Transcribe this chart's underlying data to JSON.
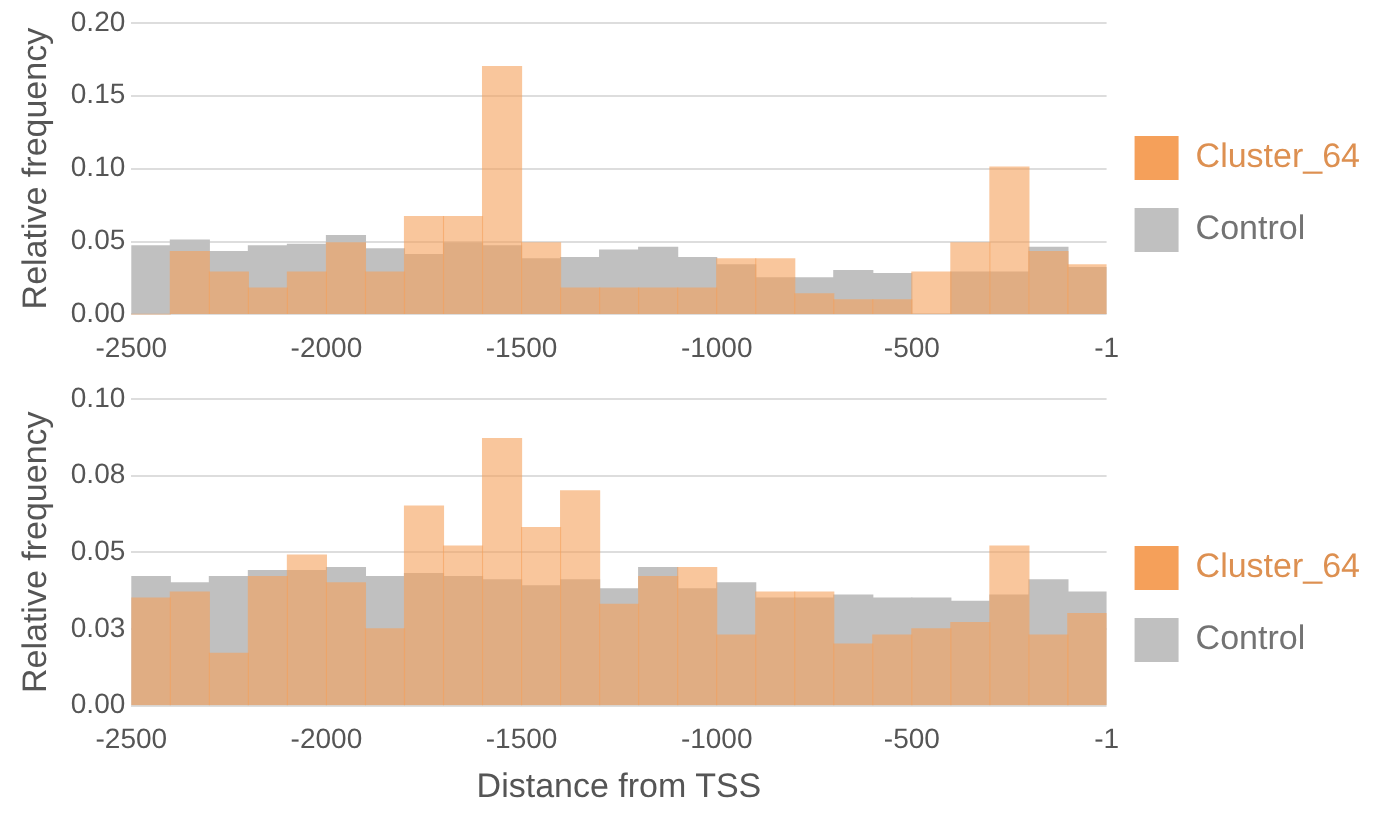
{
  "chart_data": [
    {
      "type": "histogram",
      "ylabel": "Relative frequency",
      "bins": [
        -2500,
        -2400,
        -2300,
        -2200,
        -2100,
        -2000,
        -1900,
        -1800,
        -1700,
        -1600,
        -1500,
        -1400,
        -1300,
        -1200,
        -1100,
        -1000,
        -900,
        -800,
        -700,
        -600,
        -500,
        -400,
        -300,
        -200,
        -100,
        -1
      ],
      "series": [
        {
          "name": "Cluster_64",
          "color": "#f5a05a",
          "values": [
            0,
            0.043,
            0.029,
            0.018,
            0.029,
            0.049,
            0.029,
            0.067,
            0.067,
            0.17,
            0.049,
            0.018,
            0.018,
            0.018,
            0.018,
            0.038,
            0.038,
            0.014,
            0.01,
            0.01,
            0.029,
            0.049,
            0.101,
            0.043,
            0.034
          ]
        },
        {
          "name": "Control",
          "color": "#c0c0c0",
          "values": [
            0.047,
            0.051,
            0.043,
            0.047,
            0.048,
            0.054,
            0.045,
            0.041,
            0.049,
            0.047,
            0.038,
            0.039,
            0.044,
            0.046,
            0.039,
            0.034,
            0.025,
            0.025,
            0.03,
            0.028,
            null,
            0.029,
            0.029,
            0.046,
            0.032
          ]
        }
      ],
      "xlim": [
        -2500,
        -1
      ],
      "xticks": [
        -2500,
        -2000,
        -1500,
        -1000,
        -500,
        -1
      ],
      "ylim": [
        0,
        0.2
      ],
      "yticks": [
        {
          "value": 0,
          "label": "0.00"
        },
        {
          "value": 0.05,
          "label": "0.05"
        },
        {
          "value": 0.1,
          "label": "0.10"
        },
        {
          "value": 0.15,
          "label": "0.15"
        },
        {
          "value": 0.2,
          "label": "0.20"
        }
      ],
      "grid": "y",
      "legend": "right"
    },
    {
      "type": "histogram",
      "ylabel": "Relative frequency",
      "xlabel": "Distance from TSS",
      "bins": [
        -2500,
        -2400,
        -2300,
        -2200,
        -2100,
        -2000,
        -1900,
        -1800,
        -1700,
        -1600,
        -1500,
        -1400,
        -1300,
        -1200,
        -1100,
        -1000,
        -900,
        -800,
        -700,
        -600,
        -500,
        -400,
        -300,
        -200,
        -100,
        -1
      ],
      "series": [
        {
          "name": "Cluster_64",
          "color": "#f5a05a",
          "values": [
            0.035,
            0.037,
            0.017,
            0.042,
            0.049,
            0.04,
            0.025,
            0.065,
            0.052,
            0.087,
            0.058,
            0.07,
            0.033,
            0.042,
            0.045,
            0.023,
            0.037,
            0.037,
            0.02,
            0.023,
            0.025,
            0.027,
            0.052,
            0.023,
            0.03
          ]
        },
        {
          "name": "Control",
          "color": "#c0c0c0",
          "values": [
            0.042,
            0.04,
            0.042,
            0.044,
            0.044,
            0.045,
            0.042,
            0.043,
            0.042,
            0.041,
            0.039,
            0.041,
            0.038,
            0.045,
            0.038,
            0.04,
            0.035,
            0.035,
            0.036,
            0.035,
            0.035,
            0.034,
            0.036,
            0.041,
            0.037
          ]
        }
      ],
      "xlim": [
        -2500,
        -1
      ],
      "xticks": [
        -2500,
        -2000,
        -1500,
        -1000,
        -500,
        -1
      ],
      "ylim": [
        0,
        0.1
      ],
      "yticks": [
        {
          "value": 0,
          "label": "0.00"
        },
        {
          "value": 0.025,
          "label": "0.03"
        },
        {
          "value": 0.05,
          "label": "0.05"
        },
        {
          "value": 0.075,
          "label": "0.08"
        },
        {
          "value": 0.1,
          "label": "0.10"
        }
      ],
      "grid": "y",
      "legend": "right"
    }
  ]
}
